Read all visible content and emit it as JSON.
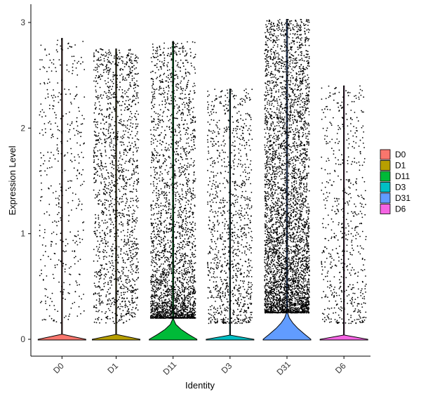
{
  "chart_data": {
    "type": "violin",
    "xlabel": "Identity",
    "ylabel": "Expression Level",
    "ylim": [
      -0.15,
      3.05
    ],
    "yticks": [
      0,
      1,
      2,
      3
    ],
    "categories": [
      "D0",
      "D1",
      "D11",
      "D3",
      "D31",
      "D6"
    ],
    "series": [
      {
        "name": "D0",
        "color": "#F8766D",
        "max": 2.85,
        "approx_nonzero_cells": 420,
        "spread": "uniform"
      },
      {
        "name": "D1",
        "color": "#B79F00",
        "max": 2.75,
        "approx_nonzero_cells": 1500,
        "spread": "uniform"
      },
      {
        "name": "D11",
        "color": "#00BA38",
        "max": 2.82,
        "approx_nonzero_cells": 2600,
        "spread": "skewed-low"
      },
      {
        "name": "D3",
        "color": "#00BFC4",
        "max": 2.37,
        "approx_nonzero_cells": 1100,
        "spread": "uniform-low"
      },
      {
        "name": "D31",
        "color": "#619CFF",
        "max": 3.03,
        "approx_nonzero_cells": 4200,
        "spread": "skewed-mid"
      },
      {
        "name": "D6",
        "color": "#F564E3",
        "max": 2.4,
        "approx_nonzero_cells": 600,
        "spread": "uniform-low"
      }
    ],
    "legend_position": "right",
    "grid": false
  }
}
